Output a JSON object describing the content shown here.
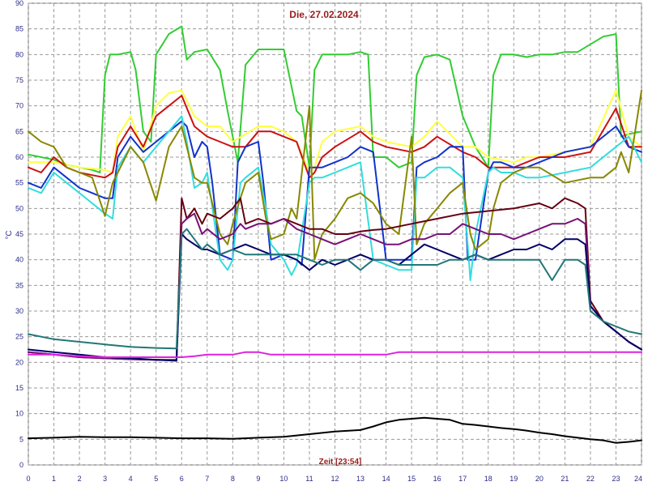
{
  "chart_data": {
    "type": "line",
    "title": "Die, 27.02.2024",
    "xlabel": "Zeit [23:54]",
    "ylabel": "°C",
    "xlim": [
      0,
      24
    ],
    "ylim": [
      0,
      90
    ],
    "xticks": [
      0,
      1,
      2,
      3,
      4,
      5,
      6,
      7,
      8,
      9,
      10,
      11,
      12,
      13,
      14,
      15,
      16,
      17,
      18,
      19,
      20,
      21,
      22,
      23,
      24
    ],
    "yticks": [
      0,
      5,
      10,
      15,
      20,
      25,
      30,
      35,
      40,
      45,
      50,
      55,
      60,
      65,
      70,
      75,
      80,
      85,
      90
    ],
    "grid": true,
    "series": [
      {
        "color": "#33cc33",
        "x": [
          0,
          0.5,
          1,
          1.5,
          2,
          2.5,
          2.8,
          3,
          3.2,
          3.5,
          4,
          4.2,
          4.5,
          4.8,
          5,
          5.5,
          6,
          6.2,
          6.5,
          7,
          7.5,
          7.8,
          8.2,
          8.5,
          9,
          9.5,
          10,
          10.5,
          10.7,
          11,
          11.2,
          11.5,
          12,
          12.5,
          13,
          13.3,
          13.5,
          14,
          14.5,
          15,
          15.2,
          15.5,
          16,
          16.5,
          17,
          17.5,
          18,
          18.2,
          18.5,
          19,
          19.5,
          20,
          20.5,
          21,
          21.5,
          22,
          22.5,
          23,
          23.2,
          23.5,
          24
        ],
        "y": [
          60.5,
          60,
          59.5,
          58.5,
          58,
          57.5,
          57,
          76,
          80,
          80,
          80.5,
          77,
          65,
          63,
          80,
          84,
          85.5,
          79,
          80.5,
          81,
          77,
          69,
          59,
          78,
          81,
          81,
          81,
          69,
          68,
          58,
          77,
          80,
          80,
          80,
          80.5,
          80,
          60,
          60,
          58,
          59,
          76,
          79.5,
          80,
          79,
          68,
          62,
          58,
          76,
          80,
          80,
          79.5,
          80,
          80,
          80.5,
          80.5,
          82,
          83.5,
          84,
          64,
          64.5,
          65
        ]
      },
      {
        "color": "#ffff44",
        "x": [
          0,
          1,
          2,
          3,
          3.3,
          3.5,
          4,
          4.5,
          5,
          5.5,
          6,
          6.5,
          7,
          7.5,
          8,
          8.5,
          9,
          9.5,
          10,
          10.5,
          11,
          11.2,
          11.5,
          12,
          13,
          13.5,
          14,
          15,
          15.5,
          16,
          17,
          17.5,
          18,
          19,
          19.5,
          20,
          21,
          22,
          23,
          23.5,
          24
        ],
        "y": [
          59,
          59,
          58,
          57.5,
          57,
          64,
          68,
          61,
          70,
          72.5,
          73,
          68,
          66,
          66,
          63,
          64.5,
          66,
          66,
          65,
          63,
          57,
          58,
          63,
          65,
          66,
          64,
          63,
          62,
          64,
          67,
          62,
          62,
          60,
          59,
          60,
          60,
          61,
          62,
          73,
          64,
          62
        ]
      },
      {
        "color": "#cc1111",
        "x": [
          0,
          0.5,
          1,
          1.5,
          2,
          2.5,
          3,
          3.3,
          3.5,
          4,
          4.5,
          5,
          5.5,
          6,
          6.5,
          7,
          7.5,
          8,
          8.5,
          9,
          9.5,
          10,
          10.5,
          11,
          11.2,
          11.5,
          12,
          13,
          13.5,
          14,
          15,
          15.5,
          16,
          17,
          17.5,
          18,
          19,
          19.5,
          20,
          21,
          22,
          23,
          23.5,
          24
        ],
        "y": [
          58,
          57,
          60,
          58,
          57,
          56.5,
          56,
          57,
          62,
          66,
          62,
          68,
          70,
          72,
          66,
          64,
          63,
          62,
          62,
          65,
          65,
          64,
          63,
          56,
          57,
          60,
          62,
          65,
          63,
          62,
          61,
          62,
          64,
          61,
          60,
          58,
          58,
          59,
          60,
          60,
          61,
          69.5,
          62,
          62
        ]
      },
      {
        "color": "#1133cc",
        "x": [
          0,
          0.5,
          1,
          1.5,
          2,
          2.5,
          3,
          3.3,
          3.5,
          4,
          4.5,
          5,
          5.5,
          6,
          6.2,
          6.5,
          6.8,
          7,
          7.2,
          7.5,
          8,
          8.2,
          8.5,
          9,
          9.2,
          9.5,
          10,
          10.5,
          10.7,
          11,
          11.5,
          12,
          12.5,
          13,
          13.5,
          14,
          14.5,
          15,
          15.2,
          15.5,
          16,
          16.5,
          17,
          17.2,
          17.5,
          18,
          18.2,
          18.5,
          19,
          19.5,
          20,
          20.5,
          21,
          22,
          23,
          23.5,
          24
        ],
        "y": [
          55,
          54,
          58,
          56,
          54,
          53,
          52,
          52,
          60,
          64,
          61,
          63,
          65,
          67,
          66,
          60,
          63,
          62,
          55,
          41,
          40,
          59,
          62,
          63,
          55,
          40,
          41,
          40,
          39,
          58,
          58,
          59,
          60,
          62,
          61,
          40,
          40,
          40,
          58,
          59,
          60,
          62,
          62,
          40,
          40,
          57,
          59,
          59,
          58,
          58,
          59,
          60,
          61,
          62,
          66,
          62,
          61
        ]
      },
      {
        "color": "#33dddd",
        "x": [
          0,
          0.5,
          1,
          1.5,
          2,
          2.5,
          3,
          3.3,
          3.5,
          4,
          4.5,
          5,
          5.5,
          6,
          6.2,
          6.5,
          6.8,
          7,
          7.5,
          7.8,
          8,
          8.3,
          8.5,
          9,
          9.3,
          9.5,
          10,
          10.3,
          10.5,
          11,
          11.2,
          11.5,
          12,
          12.5,
          13,
          13.5,
          14,
          14.5,
          15,
          15.2,
          15.5,
          16,
          16.5,
          17,
          17.3,
          17.5,
          18,
          18.2,
          18.5,
          19,
          19.5,
          20,
          21,
          22,
          23,
          23.5,
          24
        ],
        "y": [
          54,
          53,
          57,
          55,
          53,
          51,
          49,
          48,
          58,
          62,
          59,
          62,
          65,
          68,
          63,
          54,
          55,
          57,
          40,
          38,
          40,
          55,
          56,
          58,
          50,
          43,
          40,
          37,
          39,
          55,
          56,
          56,
          57,
          58,
          59,
          40,
          39,
          38,
          38,
          56,
          56,
          58,
          58,
          56,
          36,
          45,
          57,
          58,
          57,
          57,
          56,
          56,
          57,
          58,
          62,
          64,
          59
        ]
      },
      {
        "color": "#888800",
        "x": [
          0,
          0.5,
          1,
          1.5,
          2,
          2.5,
          3,
          3.3,
          3.5,
          4,
          4.5,
          5,
          5.5,
          6,
          6.2,
          6.5,
          6.8,
          7,
          7.5,
          7.8,
          8,
          8.3,
          8.5,
          9,
          9.3,
          9.5,
          10,
          10.3,
          10.5,
          11,
          11.2,
          11.5,
          12,
          12.5,
          13,
          13.5,
          14,
          14.5,
          15,
          15.2,
          15.5,
          16,
          16.5,
          17,
          17.3,
          17.5,
          18,
          18.2,
          18.5,
          19,
          19.5,
          20,
          21,
          22,
          22.5,
          23,
          23.2,
          23.5,
          24
        ],
        "y": [
          65,
          63,
          62,
          58,
          57,
          56,
          48.5,
          55,
          57,
          62,
          59,
          51.5,
          62,
          66,
          62,
          56,
          55,
          55,
          45,
          43,
          47,
          52,
          55,
          57,
          48,
          44,
          45,
          50,
          48,
          70,
          40,
          45,
          48,
          52,
          53,
          51,
          47,
          45,
          64,
          43,
          47,
          50,
          53,
          55,
          45,
          42,
          44,
          50,
          55,
          57,
          58,
          58,
          55,
          56,
          56,
          58,
          61,
          57,
          73
        ]
      },
      {
        "color": "#660011",
        "x": [
          0,
          1,
          2,
          3,
          4,
          5,
          5.8,
          6,
          6.2,
          6.5,
          6.8,
          7,
          7.5,
          8,
          8.3,
          8.5,
          9,
          9.5,
          10,
          10.5,
          11,
          11.5,
          12,
          12.5,
          13,
          13.5,
          14,
          15,
          16,
          17,
          18,
          19,
          20,
          20.5,
          21,
          21.5,
          21.8,
          22,
          22.5,
          23,
          23.5,
          24
        ],
        "y": [
          22,
          21.5,
          21,
          20.8,
          20.6,
          20.5,
          20.5,
          52,
          48,
          50,
          47,
          49,
          48,
          50,
          52,
          47,
          48,
          47,
          48,
          47,
          46,
          46,
          45,
          45,
          45.5,
          45.8,
          46,
          47,
          48,
          49,
          49.5,
          50,
          51,
          50,
          52,
          51,
          50,
          32,
          28,
          26,
          24,
          22.5
        ]
      },
      {
        "color": "#771177",
        "x": [
          0,
          1,
          2,
          3,
          4,
          5,
          5.8,
          6,
          6.2,
          6.5,
          6.8,
          7,
          7.5,
          8,
          8.3,
          8.5,
          9,
          9.5,
          10,
          10.5,
          11,
          11.5,
          12,
          12.5,
          13,
          13.5,
          14,
          14.5,
          15,
          15.5,
          16,
          16.5,
          17,
          17.5,
          18,
          18.5,
          19,
          19.5,
          20,
          20.5,
          21,
          21.5,
          21.8,
          22,
          22.5,
          23,
          23.5,
          24
        ],
        "y": [
          22,
          21.5,
          21,
          20.8,
          20.6,
          20.5,
          20.4,
          47,
          48,
          49,
          45,
          46,
          44,
          45,
          47,
          46,
          47,
          47,
          48,
          46,
          45,
          44,
          43,
          44,
          45,
          44,
          43,
          43,
          44,
          44,
          45,
          45,
          47,
          46,
          45,
          45,
          44,
          45,
          46,
          47,
          47,
          48,
          47,
          31,
          28,
          26,
          24,
          22.5
        ]
      },
      {
        "color": "#000066",
        "x": [
          0,
          1,
          2,
          3,
          4,
          5,
          5.8,
          6,
          6.2,
          6.5,
          6.8,
          7,
          7.5,
          8,
          8.5,
          9,
          9.5,
          10,
          10.5,
          11,
          11.5,
          12,
          12.5,
          13,
          13.5,
          14,
          14.5,
          15,
          15.5,
          16,
          16.5,
          17,
          17.5,
          18,
          18.5,
          19,
          19.5,
          20,
          20.5,
          21,
          21.5,
          21.8,
          22,
          22.5,
          23,
          23.5,
          24
        ],
        "y": [
          22.5,
          22,
          21.5,
          21,
          20.8,
          20.5,
          20.3,
          45,
          44,
          43,
          42,
          42,
          41,
          42,
          43,
          42,
          41,
          41,
          40,
          38,
          40,
          39,
          40,
          41,
          40,
          40,
          39,
          41,
          43,
          42,
          41,
          40,
          41,
          40,
          41,
          42,
          42,
          43,
          42,
          44,
          44,
          43,
          31,
          28,
          26,
          24,
          22.5
        ]
      },
      {
        "color": "#227777",
        "x": [
          0,
          1,
          2,
          3,
          4,
          5,
          5.8,
          6,
          6.2,
          6.5,
          6.8,
          7,
          7.5,
          8,
          8.5,
          9,
          9.5,
          10,
          10.5,
          11,
          11.5,
          12,
          12.5,
          13,
          13.5,
          14,
          14.5,
          15,
          15.5,
          16,
          16.5,
          17,
          17.5,
          18,
          18.5,
          19,
          19.5,
          20,
          20.5,
          21,
          21.5,
          21.8,
          22,
          22.5,
          23,
          23.5,
          24
        ],
        "y": [
          25.5,
          24.5,
          24,
          23.5,
          23,
          22.8,
          22.7,
          45,
          46,
          44,
          42,
          43,
          41,
          42,
          41,
          41,
          41,
          41,
          41,
          40,
          39,
          40,
          40,
          38,
          40,
          40,
          39,
          39,
          39,
          39,
          40,
          40,
          41,
          40,
          40,
          40,
          40,
          40,
          36,
          40,
          40,
          39,
          30,
          28,
          27,
          26,
          25.5
        ]
      },
      {
        "color": "#dd22dd",
        "x": [
          0,
          1,
          2,
          3,
          4,
          5,
          6,
          6.5,
          7,
          7.5,
          8,
          8.5,
          9,
          9.5,
          10,
          11,
          12,
          13,
          14,
          14.5,
          15,
          16,
          17,
          18,
          19,
          20,
          21,
          22,
          23,
          24
        ],
        "y": [
          21.5,
          21.5,
          21.2,
          21,
          21,
          21,
          21,
          21.2,
          21.5,
          21.5,
          21.5,
          22,
          22,
          21.5,
          21.5,
          21.5,
          21.5,
          21.5,
          21.5,
          22,
          22,
          22,
          22,
          22,
          22,
          22,
          22,
          22,
          22,
          22
        ]
      },
      {
        "color": "#000000",
        "x": [
          0,
          1,
          2,
          3,
          4,
          5,
          6,
          7,
          8,
          9,
          10,
          11,
          12,
          13,
          13.5,
          14,
          14.5,
          15,
          15.5,
          16,
          16.5,
          17,
          17.5,
          18,
          18.5,
          19,
          19.5,
          20,
          20.5,
          21,
          21.5,
          22,
          22.5,
          23,
          23.5,
          24
        ],
        "y": [
          5.2,
          5.3,
          5.5,
          5.4,
          5.4,
          5.3,
          5.2,
          5.2,
          5.1,
          5.3,
          5.5,
          6.0,
          6.5,
          6.8,
          7.5,
          8.3,
          8.8,
          9.0,
          9.2,
          9.0,
          8.8,
          8.0,
          7.8,
          7.5,
          7.2,
          7.0,
          6.7,
          6.3,
          6.0,
          5.6,
          5.3,
          5.0,
          4.8,
          4.3,
          4.5,
          4.8
        ]
      }
    ]
  }
}
